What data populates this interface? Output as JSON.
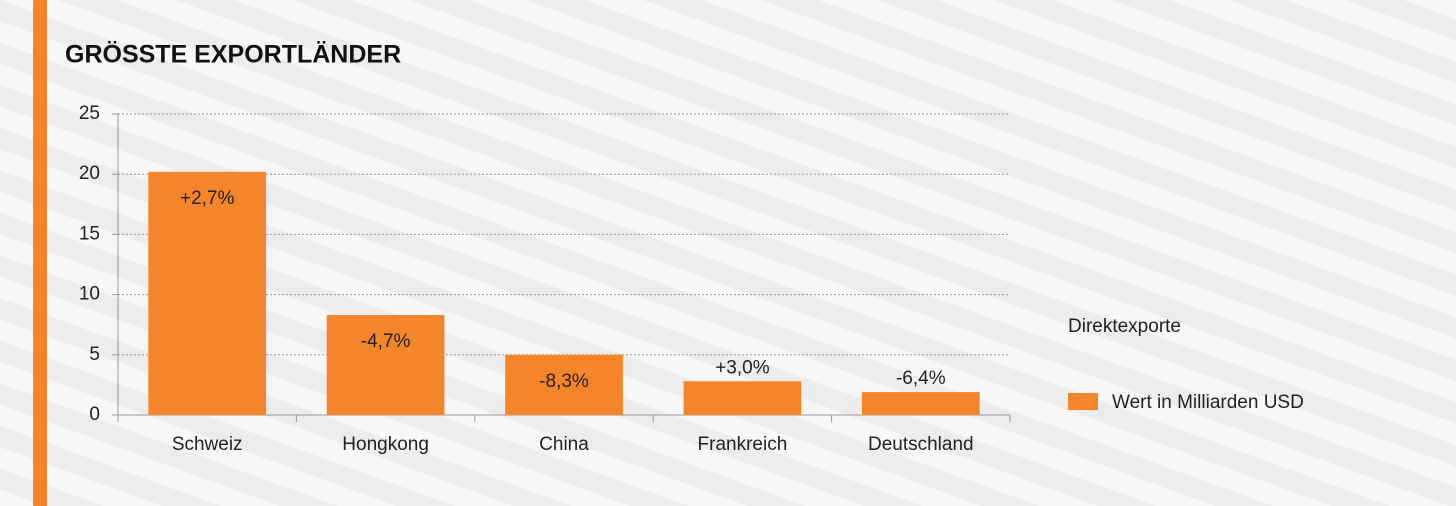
{
  "chart_data": {
    "type": "bar",
    "title": "GRÖSSTE EXPORTLÄNDER",
    "categories": [
      "Schweiz",
      "Hongkong",
      "China",
      "Frankreich",
      "Deutschland"
    ],
    "series": [
      {
        "name": "Wert in Milliarden USD",
        "color": "#f5852a",
        "values": [
          20.2,
          8.3,
          5.0,
          2.8,
          1.9
        ]
      }
    ],
    "changes": [
      "+2,7%",
      "-4,7%",
      "-8,3%",
      "+3,0%",
      "-6,4%"
    ],
    "legend_title": "Direktexporte",
    "legend": "right",
    "ylim": [
      0,
      25
    ],
    "yticks": [
      0,
      5,
      10,
      15,
      20,
      25
    ],
    "grid": true
  }
}
